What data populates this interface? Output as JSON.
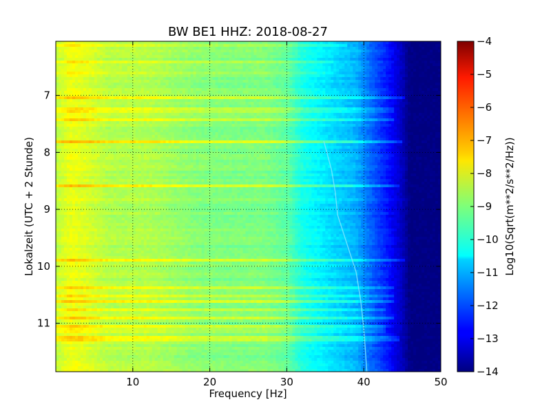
{
  "chart_data": {
    "type": "heatmap",
    "title": "BW BE1 HHZ: 2018-08-27",
    "xlabel": "Frequency [Hz]",
    "ylabel": "Lokalzeit (UTC + 2 Stunde)",
    "xlim": [
      0,
      50
    ],
    "ylim": [
      11.85,
      6.05
    ],
    "x_ticks": [
      10,
      20,
      30,
      40,
      50
    ],
    "y_ticks": [
      7,
      8,
      9,
      10,
      11
    ],
    "grid": true,
    "colormap": "jet",
    "colorbar": {
      "label": "Log10(Sqrt(m**2/s**2/Hz))",
      "range": [
        -14,
        -4
      ],
      "ticks": [
        -4,
        -5,
        -6,
        -7,
        -8,
        -9,
        -10,
        -11,
        -12,
        -13,
        -14
      ]
    },
    "value_profile": [
      {
        "freq": 0,
        "value": -8.4
      },
      {
        "freq": 2,
        "value": -7.9
      },
      {
        "freq": 4,
        "value": -8.1
      },
      {
        "freq": 7,
        "value": -8.5
      },
      {
        "freq": 12,
        "value": -8.5
      },
      {
        "freq": 18,
        "value": -8.9
      },
      {
        "freq": 22,
        "value": -9.0
      },
      {
        "freq": 27,
        "value": -9.0
      },
      {
        "freq": 30,
        "value": -9.3
      },
      {
        "freq": 32,
        "value": -10.0
      },
      {
        "freq": 36,
        "value": -10.6
      },
      {
        "freq": 39,
        "value": -11.0
      },
      {
        "freq": 41,
        "value": -11.8
      },
      {
        "freq": 43,
        "value": -12.5
      },
      {
        "freq": 45,
        "value": -13.4
      },
      {
        "freq": 46,
        "value": -14.0
      },
      {
        "freq": 50,
        "value": -14.0
      }
    ],
    "horizontal_bands": [
      {
        "time": 6.12,
        "value_boost": 0.5,
        "max_freq": 38
      },
      {
        "time": 6.4,
        "value_boost": 0.4,
        "max_freq": 36
      },
      {
        "time": 6.6,
        "value_boost": 0.4,
        "max_freq": 36
      },
      {
        "time": 7.05,
        "value_boost": 1.0,
        "max_freq": 45.5
      },
      {
        "time": 7.25,
        "value_boost": 0.8,
        "max_freq": 44
      },
      {
        "time": 7.42,
        "value_boost": 0.8,
        "max_freq": 44
      },
      {
        "time": 7.82,
        "value_boost": 0.9,
        "max_freq": 45
      },
      {
        "time": 8.6,
        "value_boost": 0.9,
        "max_freq": 44.5
      },
      {
        "time": 9.88,
        "value_boost": 1.0,
        "max_freq": 45.5
      },
      {
        "time": 10.37,
        "value_boost": 0.8,
        "max_freq": 44
      },
      {
        "time": 10.52,
        "value_boost": 0.7,
        "max_freq": 44
      },
      {
        "time": 10.62,
        "value_boost": 0.7,
        "max_freq": 44
      },
      {
        "time": 10.77,
        "value_boost": 0.6,
        "max_freq": 43
      },
      {
        "time": 10.9,
        "value_boost": 0.8,
        "max_freq": 44
      },
      {
        "time": 11.05,
        "value_boost": 0.6,
        "max_freq": 43
      },
      {
        "time": 11.12,
        "value_boost": 0.6,
        "max_freq": 43
      },
      {
        "time": 11.28,
        "value_boost": 0.9,
        "max_freq": 44.5
      }
    ],
    "gliding_line": [
      {
        "time": 7.8,
        "freq": 34.8
      },
      {
        "time": 8.3,
        "freq": 35.8
      },
      {
        "time": 8.7,
        "freq": 36.3
      },
      {
        "time": 9.1,
        "freq": 36.6
      },
      {
        "time": 9.6,
        "freq": 37.8
      },
      {
        "time": 10.1,
        "freq": 39.0
      },
      {
        "time": 10.6,
        "freq": 39.6
      },
      {
        "time": 11.1,
        "freq": 40.0
      },
      {
        "time": 11.85,
        "freq": 40.4
      }
    ]
  }
}
